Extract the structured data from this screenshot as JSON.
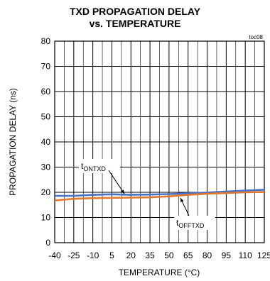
{
  "chart_data": {
    "type": "line",
    "title": "TXD PROPAGATION DELAY",
    "subtitle": "vs. TEMPERATURE",
    "figure_code": "toc08",
    "xlabel": "TEMPERATURE (°C)",
    "ylabel": "PROPAGATION DELAY (ns)",
    "xlim": [
      -40,
      125
    ],
    "ylim": [
      0,
      80
    ],
    "xticks": [
      "-40",
      "-25",
      "-10",
      "5",
      "20",
      "35",
      "50",
      "65",
      "80",
      "95",
      "110",
      "125"
    ],
    "yticks": [
      "0",
      "10",
      "20",
      "30",
      "40",
      "50",
      "60",
      "70",
      "80"
    ],
    "grid": true,
    "series": [
      {
        "name": "tONTXD",
        "label_main": "t",
        "label_sub": "ONTXD",
        "color": "#4a72c4",
        "x": [
          -40,
          -25,
          -10,
          5,
          20,
          35,
          50,
          65,
          80,
          95,
          110,
          125
        ],
        "y": [
          18.6,
          18.6,
          19.0,
          19.2,
          19.0,
          19.1,
          19.3,
          19.6,
          19.9,
          20.3,
          20.7,
          21.0
        ]
      },
      {
        "name": "tOFFTXD",
        "label_main": "t",
        "label_sub": "OFFTXD",
        "color": "#e07a2e",
        "x": [
          -40,
          -25,
          -10,
          5,
          20,
          35,
          50,
          65,
          80,
          95,
          110,
          125
        ],
        "y": [
          16.8,
          17.4,
          17.7,
          17.8,
          17.9,
          18.0,
          18.4,
          19.0,
          19.4,
          19.7,
          20.0,
          20.1
        ]
      }
    ]
  }
}
